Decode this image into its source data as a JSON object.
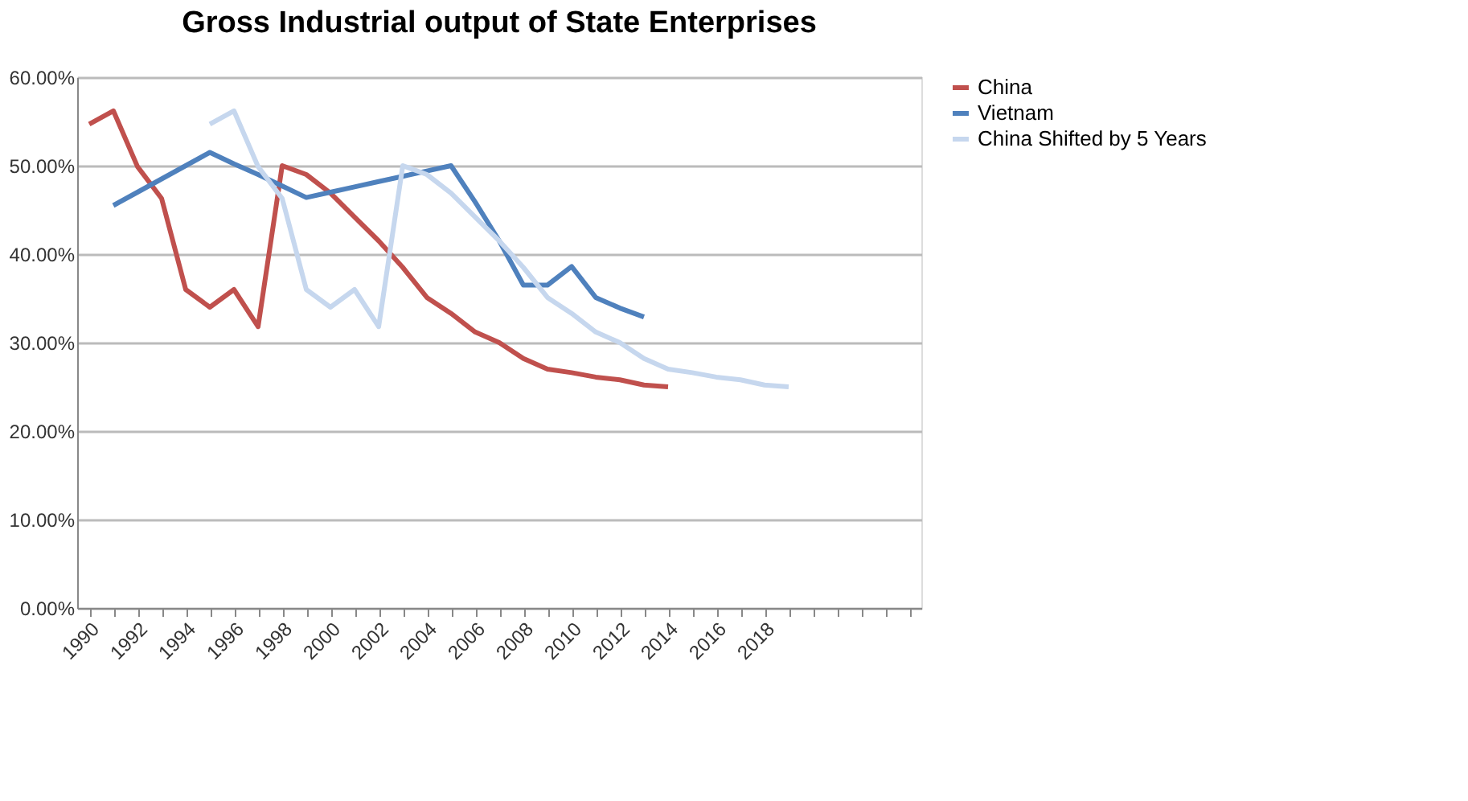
{
  "chart_data": {
    "type": "line",
    "title": "Gross Industrial output of State Enterprises",
    "categories": [
      "1990",
      null,
      "1992",
      null,
      "1994",
      null,
      "1996",
      null,
      "1998",
      null,
      "2000",
      null,
      "2002",
      null,
      "2004",
      null,
      "2006",
      null,
      "2008",
      null,
      "2010",
      null,
      "2012",
      null,
      "2014",
      null,
      "2016",
      null,
      "2018",
      null,
      null,
      null,
      null,
      null,
      null
    ],
    "series": [
      {
        "name": "China",
        "color": "#c0504d",
        "values": [
          54.7,
          56.2,
          49.9,
          46.3,
          36.0,
          34.0,
          36.0,
          31.8,
          50.0,
          49.0,
          46.9,
          44.2,
          41.5,
          38.5,
          35.1,
          33.3,
          31.2,
          30.0,
          28.2,
          27.0,
          26.6,
          26.1,
          25.8,
          25.2,
          25.0,
          null,
          null,
          null,
          null,
          null,
          null,
          null,
          null,
          null,
          null
        ]
      },
      {
        "name": "Vietnam",
        "color": "#4f81bd",
        "values": [
          null,
          45.5,
          47.0,
          48.5,
          50.0,
          51.5,
          50.2,
          49.0,
          47.7,
          46.4,
          47.0,
          47.6,
          48.2,
          48.8,
          49.4,
          50.0,
          45.9,
          41.5,
          36.5,
          36.5,
          38.6,
          35.1,
          33.9,
          32.9,
          null,
          null,
          null,
          null,
          null,
          null,
          null,
          null,
          null,
          null,
          null
        ]
      },
      {
        "name": "China Shifted by 5 Years",
        "color": "#c6d7ee",
        "values": [
          null,
          null,
          null,
          null,
          null,
          54.7,
          56.2,
          49.9,
          46.3,
          36.0,
          34.0,
          36.0,
          31.8,
          50.0,
          49.0,
          46.9,
          44.2,
          41.5,
          38.5,
          35.1,
          33.3,
          31.2,
          30.0,
          28.2,
          27.0,
          26.6,
          26.1,
          25.8,
          25.2,
          25.0,
          null,
          null,
          null,
          null,
          null
        ]
      }
    ],
    "ylim": [
      0,
      60
    ],
    "yticks": [
      {
        "value": 0,
        "label": "0.00%"
      },
      {
        "value": 10,
        "label": "10.00%"
      },
      {
        "value": 20,
        "label": "20.00%"
      },
      {
        "value": 30,
        "label": "30.00%"
      },
      {
        "value": 40,
        "label": "40.00%"
      },
      {
        "value": 50,
        "label": "50.00%"
      },
      {
        "value": 60,
        "label": "60.00%"
      }
    ],
    "grid": "y",
    "legend": "right",
    "marker": "none",
    "line_style": "solid"
  }
}
